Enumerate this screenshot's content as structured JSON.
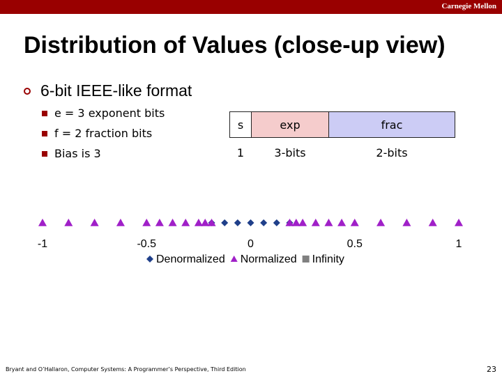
{
  "header": {
    "institution": "Carnegie Mellon"
  },
  "slide": {
    "title": "Distribution of Values (close-up view)",
    "bullet": "6-bit IEEE-like format",
    "subbullets": [
      "e = 3 exponent bits",
      "f = 2 fraction bits",
      "Bias is 3"
    ]
  },
  "format": {
    "fields": [
      {
        "label": "s",
        "bits": "1",
        "color": "#ffffff"
      },
      {
        "label": "exp",
        "bits": "3-bits",
        "color": "#f5cccc"
      },
      {
        "label": "frac",
        "bits": "2-bits",
        "color": "#ccccf5"
      }
    ]
  },
  "chart_data": {
    "type": "scatter",
    "title": "",
    "xlabel": "",
    "ylabel": "",
    "xlim": [
      -1,
      1
    ],
    "tick_labels": [
      "-1",
      "-0.5",
      "0",
      "0.5",
      "1"
    ],
    "ticks": [
      -1,
      -0.5,
      0,
      0.5,
      1
    ],
    "legend_position": "bottom",
    "series": [
      {
        "name": "Denormalized",
        "marker": "diamond",
        "color": "#1f3f8a",
        "values": [
          -0.1875,
          -0.125,
          -0.0625,
          0,
          0.0625,
          0.125,
          0.1875
        ]
      },
      {
        "name": "Normalized",
        "marker": "triangle",
        "color": "#a020c8",
        "values": [
          -1,
          -0.875,
          -0.75,
          -0.625,
          -0.5,
          -0.4375,
          -0.375,
          -0.3125,
          -0.25,
          -0.21875,
          -0.1875,
          0.1875,
          0.21875,
          0.25,
          0.3125,
          0.375,
          0.4375,
          0.5,
          0.625,
          0.75,
          0.875,
          1
        ]
      },
      {
        "name": "Infinity",
        "marker": "square",
        "color": "#808080",
        "values": []
      }
    ]
  },
  "footer": {
    "citation": "Bryant and O’Hallaron, Computer Systems: A Programmer’s Perspective, Third Edition",
    "page": "23"
  }
}
